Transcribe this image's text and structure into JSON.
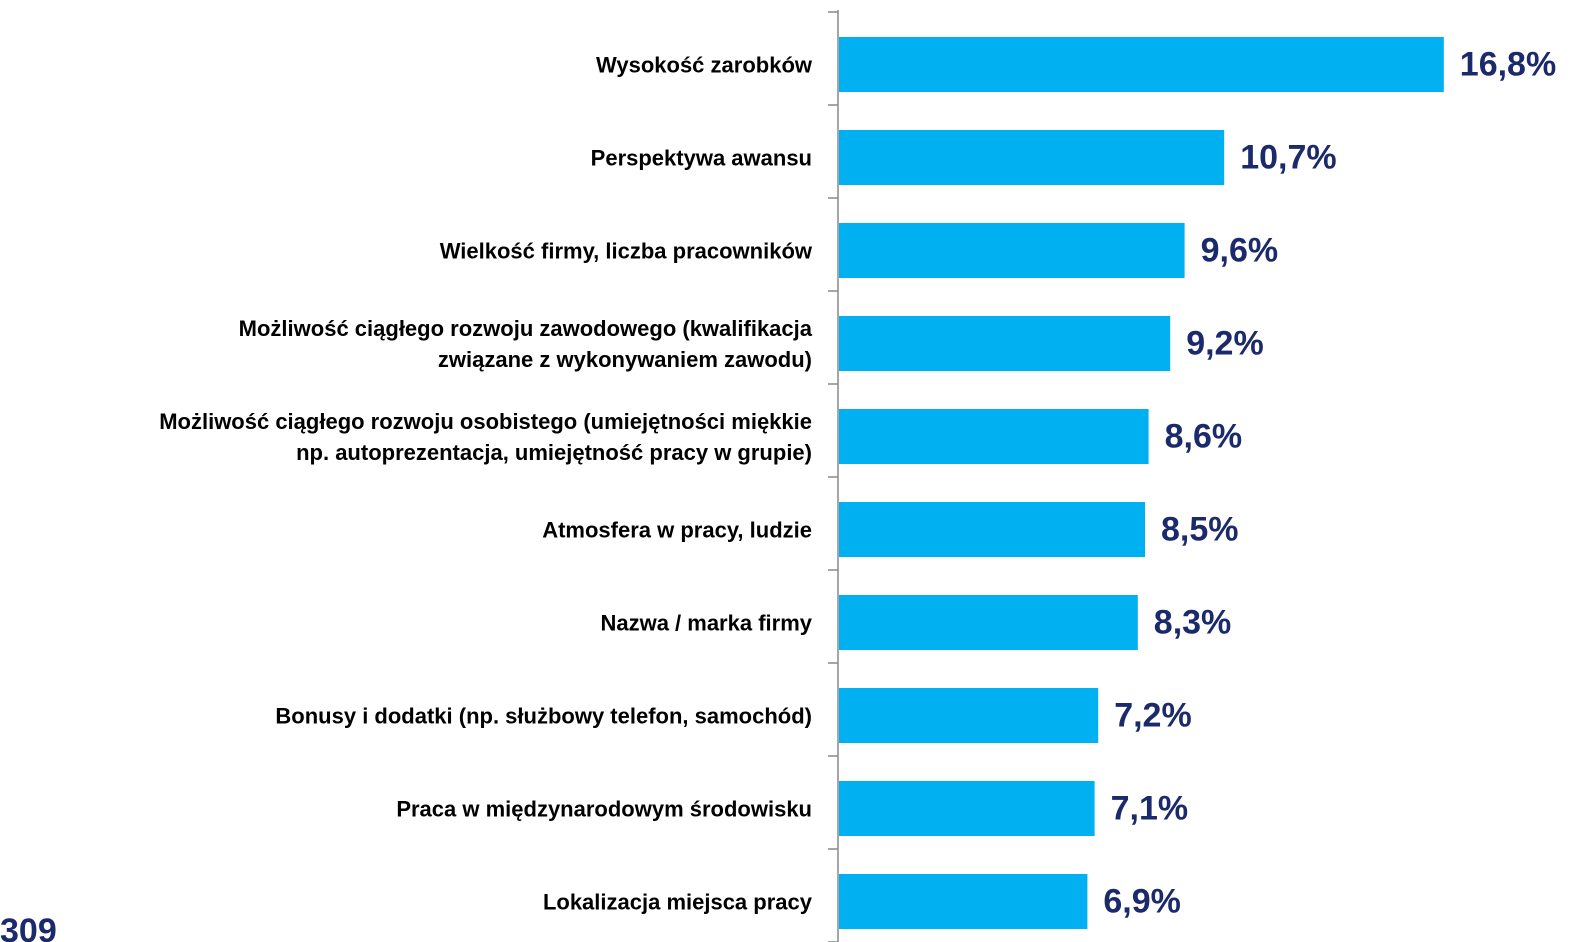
{
  "chart_data": {
    "type": "bar",
    "orientation": "horizontal",
    "categories": [
      "Wysokość zarobków",
      "Perspektywa awansu",
      "Wielkość firmy, liczba pracowników",
      "Możliwość ciągłego rozwoju zawodowego (kwalifikacja\nzwiązane z wykonywaniem zawodu)",
      "Możliwość ciągłego rozwoju osobistego (umiejętności miękkie\nnp. autoprezentacja, umiejętność pracy w grupie)",
      "Atmosfera w pracy, ludzie",
      "Nazwa / marka firmy",
      "Bonusy i dodatki (np. służbowy telefon, samochód)",
      "Praca w międzynarodowym środowisku",
      "Lokalizacja miejsca pracy"
    ],
    "values": [
      16.8,
      10.7,
      9.6,
      9.2,
      8.6,
      8.5,
      8.3,
      7.2,
      7.1,
      6.9
    ],
    "value_labels": [
      "16,8%",
      "10,7%",
      "9,6%",
      "9,2%",
      "8,6%",
      "8,5%",
      "8,3%",
      "7,2%",
      "7,1%",
      "6,9%"
    ],
    "color": "#00b0f0",
    "annotation": "309"
  }
}
